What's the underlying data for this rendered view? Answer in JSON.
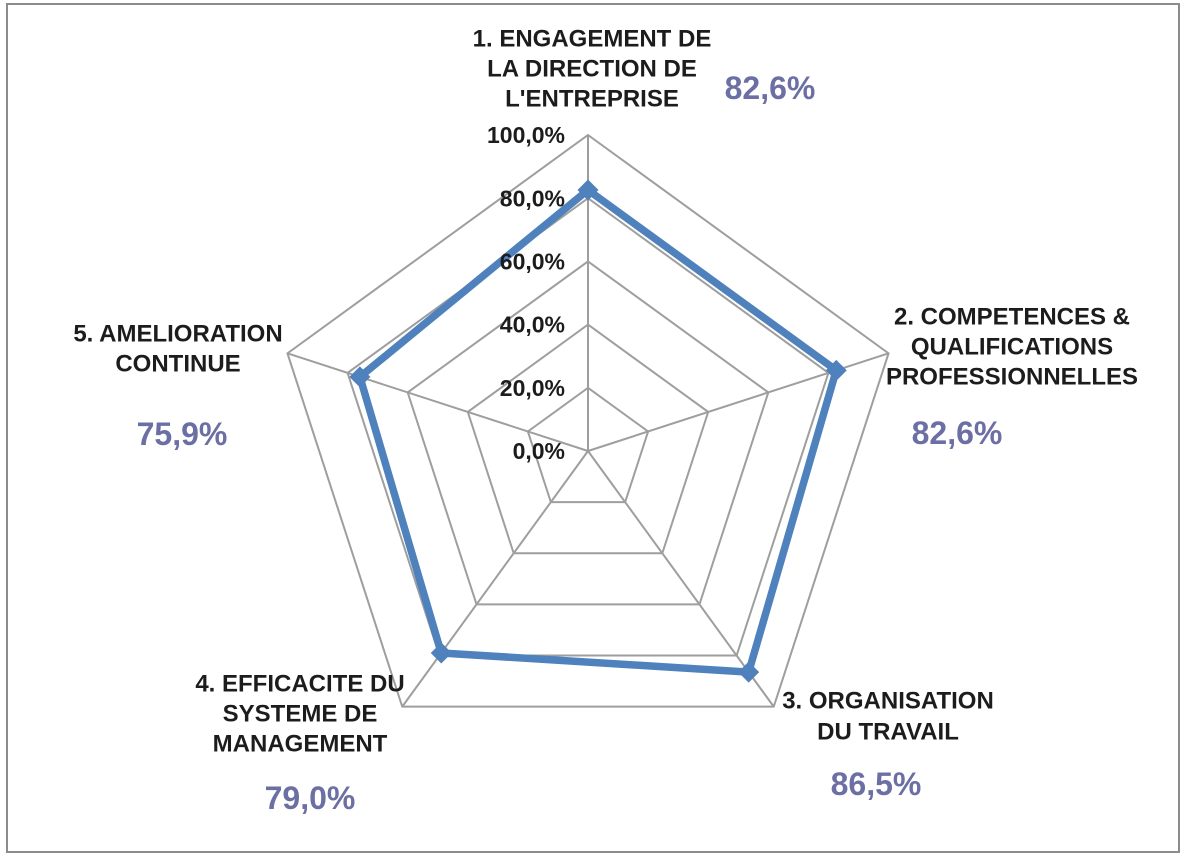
{
  "chart_data": {
    "type": "radar",
    "title": "",
    "legend_position": "none",
    "grid": true,
    "axis": {
      "min": 0,
      "max": 100,
      "unit": "%",
      "ticks": [
        {
          "value": 0,
          "label": "0,0%"
        },
        {
          "value": 20,
          "label": "20,0%"
        },
        {
          "value": 40,
          "label": "40,0%"
        },
        {
          "value": 60,
          "label": "60,0%"
        },
        {
          "value": 80,
          "label": "80,0%"
        },
        {
          "value": 100,
          "label": "100,0%"
        }
      ]
    },
    "categories": [
      {
        "label": "1. ENGAGEMENT DE LA DIRECTION DE L'ENTREPRISE",
        "label_lines": [
          "1. ENGAGEMENT DE",
          "LA DIRECTION DE",
          "L'ENTREPRISE"
        ],
        "value": 82.6,
        "value_label": "82,6%"
      },
      {
        "label": "2. COMPETENCES & QUALIFICATIONS PROFESSIONNELLES",
        "label_lines": [
          "2. COMPETENCES &",
          "QUALIFICATIONS",
          "PROFESSIONNELLES"
        ],
        "value": 82.6,
        "value_label": "82,6%"
      },
      {
        "label": "3. ORGANISATION DU TRAVAIL",
        "label_lines": [
          "3. ORGANISATION",
          "DU TRAVAIL"
        ],
        "value": 86.5,
        "value_label": "86,5%"
      },
      {
        "label": "4. EFFICACITE DU SYSTEME DE MANAGEMENT",
        "label_lines": [
          "4. EFFICACITE DU",
          "SYSTEME DE",
          "MANAGEMENT"
        ],
        "value": 79.0,
        "value_label": "79,0%"
      },
      {
        "label": "5. AMELIORATION CONTINUE",
        "label_lines": [
          "5. AMELIORATION",
          "CONTINUE"
        ],
        "value": 75.9,
        "value_label": "75,9%"
      }
    ],
    "colors": {
      "series_line": "#4F81BD",
      "marker": "#4F81BD",
      "value_label": "#6C6FA4",
      "category_label": "#1C1C1C",
      "tick_label": "#1C1C1C",
      "grid_line": "#9E9E9E",
      "page_border": "#8C8C8C",
      "background": "#FFFFFF"
    }
  }
}
